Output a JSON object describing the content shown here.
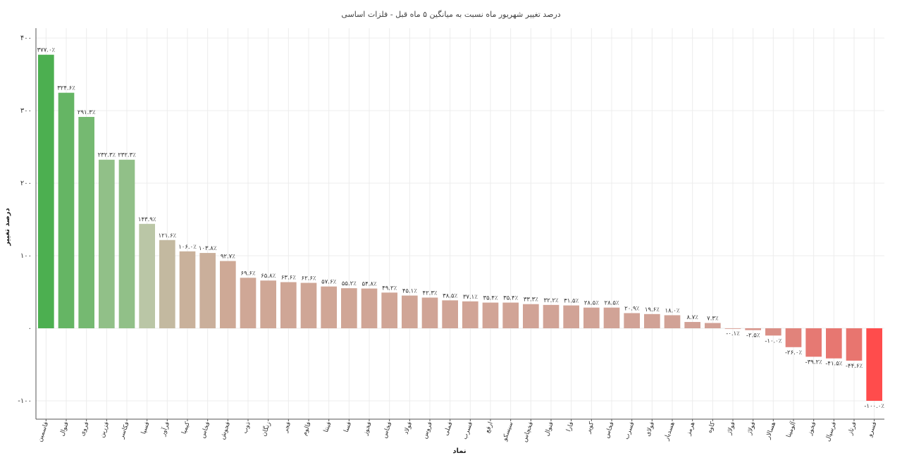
{
  "chart_data": {
    "type": "bar",
    "title": "درصد تغییر شهریور ماه نسبت به میانگین ۵ ماه قبل - فلزات اساسی",
    "xlabel": "نماد",
    "ylabel": "درصد تغییر",
    "ylim": [
      -120,
      400
    ],
    "yticks": [
      -100,
      0,
      100,
      200,
      300,
      400
    ],
    "ytick_labels": [
      "-۱۰۰",
      "۰",
      "۱۰۰",
      "۲۰۰",
      "۳۰۰",
      "۴۰۰"
    ],
    "grid": true,
    "categories": [
      "فاسمین",
      "فنوال",
      "فروی",
      "فزرین",
      "فکاسر",
      "فسپا",
      "فرآور",
      "کیمیا",
      "فخاس",
      "فجوش",
      "ذوب",
      "زنگان",
      "فجر",
      "فالوم",
      "فبنتا",
      "فسا",
      "فخوز",
      "فخاس",
      "فولاد",
      "فروس",
      "فملی",
      "فسرب",
      "ارفع",
      "سیسکو",
      "فخچاس",
      "فنوال",
      "فارا",
      "کویر",
      "فخاس",
      "فسرب",
      "فولای",
      "هسدیار",
      "هرمز",
      "کاوه",
      "فولاژ",
      "فولاژ",
      "هسالار",
      "آلومینا",
      "فخوز",
      "فرسپال",
      "فرتاز",
      "فسرو"
    ],
    "values": [
      377.0,
      324.6,
      291.3,
      232.3,
      232.3,
      143.9,
      121.6,
      106.0,
      103.8,
      92.7,
      69.6,
      65.8,
      63.6,
      62.6,
      57.6,
      55.2,
      54.8,
      49.2,
      45.1,
      42.3,
      38.5,
      37.1,
      35.4,
      35.4,
      33.3,
      32.2,
      31.5,
      28.5,
      28.5,
      20.9,
      19.6,
      18.0,
      8.7,
      7.3,
      -0.1,
      -2.5,
      -10.0,
      -26.0,
      -39.2,
      -41.5,
      -44.6,
      -100.0
    ],
    "value_labels": [
      "۳۷۷.۰٪",
      "۳۲۴.۶٪",
      "۲۹۱.۳٪",
      "۲۳۲.۳٪",
      "۲۳۲.۳٪",
      "۱۴۳.۹٪",
      "۱۲۱.۶٪",
      "۱۰۶.۰٪",
      "۱۰۳.۸٪",
      "۹۲.۷٪",
      "۶۹.۶٪",
      "۶۵.۸٪",
      "۶۳.۶٪",
      "۶۲.۶٪",
      "۵۷.۶٪",
      "۵۵.۲٪",
      "۵۴.۸٪",
      "۴۹.۲٪",
      "۴۵.۱٪",
      "۴۲.۳٪",
      "۳۸.۵٪",
      "۳۷.۱٪",
      "۳۵.۴٪",
      "۳۵.۴٪",
      "۳۳.۳٪",
      "۳۲.۲٪",
      "۳۱.۵٪",
      "۲۸.۵٪",
      "۲۸.۵٪",
      "۲۰.۹٪",
      "۱۹.۶٪",
      "۱۸.۰٪",
      "۸.۷٪",
      "۷.۳٪",
      "-۰.۱٪",
      "-۲.۵٪",
      "-۱۰.۰٪",
      "-۲۶.۰٪",
      "-۳۹.۲٪",
      "-۴۱.۵٪",
      "-۴۴.۶٪",
      "-۱۰۰.۰٪"
    ],
    "colors": {
      "high": "#4caf50",
      "mid": "#b8c9a8",
      "low_positive": "#d99b90",
      "negative": "#ff4c4c"
    }
  }
}
